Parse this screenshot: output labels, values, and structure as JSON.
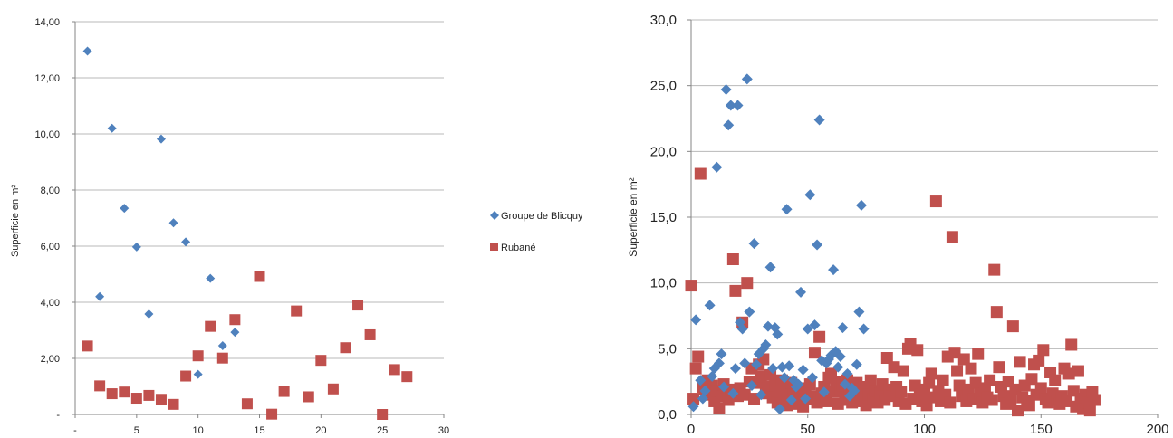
{
  "colors": {
    "blicquy": "#4f81bd",
    "rubane": "#c0504d",
    "grid": "#b8b8b8",
    "axis": "#868686"
  },
  "chart_data": [
    {
      "type": "scatter",
      "ylabel": "Superficie en m²",
      "xlim": [
        0,
        30
      ],
      "ylim": [
        0,
        14
      ],
      "x_ticks": [
        "-",
        "5",
        "10",
        "15",
        "20",
        "25",
        "30"
      ],
      "y_ticks": [
        "-",
        "2,00",
        "4,00",
        "6,00",
        "8,00",
        "10,00",
        "12,00",
        "14,00"
      ],
      "grid": true,
      "legend": "right",
      "series": [
        {
          "name": "Groupe de Blicquy",
          "marker": "diamond",
          "x": [
            1,
            2,
            3,
            4,
            5,
            6,
            7,
            8,
            9,
            10,
            11,
            12,
            13
          ],
          "y": [
            12.95,
            4.2,
            10.2,
            7.35,
            5.97,
            3.58,
            9.82,
            6.83,
            6.15,
            1.43,
            4.85,
            2.45,
            2.93
          ]
        },
        {
          "name": "Rubané",
          "marker": "square",
          "x": [
            1,
            2,
            3,
            4,
            5,
            6,
            7,
            8,
            9,
            10,
            11,
            12,
            13,
            14,
            15,
            16,
            17,
            18,
            19,
            20,
            21,
            22,
            23,
            24,
            25,
            26,
            27
          ],
          "y": [
            2.44,
            1.02,
            0.74,
            0.8,
            0.58,
            0.68,
            0.54,
            0.36,
            1.37,
            2.09,
            3.14,
            2.01,
            3.38,
            0.38,
            4.92,
            0.01,
            0.82,
            3.69,
            0.63,
            1.93,
            0.91,
            2.38,
            3.9,
            2.84,
            0.0,
            1.6,
            1.35
          ]
        }
      ]
    },
    {
      "type": "scatter",
      "ylabel": "Superficie en m²",
      "xlim": [
        0,
        200
      ],
      "ylim": [
        0,
        30
      ],
      "x_ticks": [
        "0",
        "50",
        "100",
        "150",
        "200"
      ],
      "y_ticks": [
        "0,0",
        "5,0",
        "10,0",
        "15,0",
        "20,0",
        "25,0",
        "30,0"
      ],
      "grid": true,
      "legend": "none",
      "series": [
        {
          "name": "Groupe de Blicquy",
          "marker": "diamond",
          "x": [
            1,
            2,
            4,
            5,
            6,
            8,
            9,
            10,
            11,
            12,
            13,
            14,
            15,
            16,
            17,
            18,
            19,
            20,
            21,
            22,
            23,
            24,
            25,
            26,
            27,
            28,
            29,
            30,
            31,
            32,
            33,
            34,
            35,
            36,
            37,
            38,
            39,
            40,
            41,
            42,
            43,
            44,
            45,
            46,
            47,
            48,
            49,
            50,
            51,
            52,
            53,
            54,
            55,
            56,
            57,
            58,
            59,
            60,
            61,
            62,
            63,
            64,
            65,
            66,
            67,
            68,
            69,
            70,
            71,
            72,
            73,
            74
          ],
          "y": [
            0.6,
            7.2,
            2.6,
            1.2,
            1.8,
            8.3,
            2.9,
            3.5,
            18.8,
            3.9,
            4.6,
            2.1,
            24.7,
            22.0,
            23.5,
            1.6,
            3.5,
            23.5,
            7.0,
            6.5,
            3.9,
            25.5,
            7.8,
            2.2,
            13.0,
            3.8,
            4.6,
            1.5,
            5.0,
            5.3,
            6.7,
            11.2,
            3.5,
            6.6,
            6.1,
            0.4,
            3.6,
            2.8,
            15.6,
            3.7,
            1.1,
            2.6,
            2.1,
            2.3,
            9.3,
            3.4,
            1.2,
            6.5,
            16.7,
            2.8,
            6.8,
            12.9,
            22.4,
            4.1,
            1.7,
            3.9,
            4.2,
            4.5,
            11.0,
            4.8,
            3.6,
            4.4,
            6.6,
            2.3,
            3.1,
            1.4,
            2.0,
            1.8,
            3.8,
            7.8,
            15.9,
            6.5
          ]
        },
        {
          "name": "Rubané",
          "marker": "square",
          "x": [
            0,
            1,
            2,
            3,
            4,
            5,
            6,
            7,
            8,
            9,
            10,
            11,
            12,
            13,
            14,
            15,
            16,
            17,
            18,
            19,
            20,
            21,
            22,
            23,
            24,
            25,
            26,
            27,
            28,
            29,
            30,
            31,
            32,
            33,
            34,
            35,
            36,
            37,
            38,
            39,
            40,
            41,
            42,
            43,
            44,
            45,
            46,
            47,
            48,
            49,
            50,
            51,
            52,
            53,
            54,
            55,
            56,
            57,
            58,
            59,
            60,
            61,
            62,
            63,
            64,
            65,
            66,
            67,
            68,
            69,
            70,
            71,
            72,
            73,
            74,
            75,
            76,
            77,
            78,
            79,
            80,
            81,
            82,
            83,
            84,
            85,
            86,
            87,
            88,
            89,
            90,
            91,
            92,
            93,
            94,
            95,
            96,
            97,
            98,
            99,
            100,
            101,
            102,
            103,
            104,
            105,
            106,
            107,
            108,
            109,
            110,
            111,
            112,
            113,
            114,
            115,
            116,
            117,
            118,
            119,
            120,
            121,
            122,
            123,
            124,
            125,
            126,
            127,
            128,
            129,
            130,
            131,
            132,
            133,
            134,
            135,
            136,
            137,
            138,
            139,
            140,
            141,
            142,
            143,
            144,
            145,
            146,
            147,
            148,
            149,
            150,
            151,
            152,
            153,
            154,
            155,
            156,
            157,
            158,
            159,
            160,
            161,
            162,
            163,
            164,
            165,
            166,
            167,
            168,
            169,
            170,
            171,
            172,
            173
          ],
          "y": [
            9.8,
            1.2,
            3.5,
            4.4,
            18.3,
            2.1,
            1.9,
            2.6,
            1.5,
            2.2,
            1.0,
            1.8,
            0.5,
            1.4,
            2.3,
            1.6,
            1.1,
            1.9,
            11.8,
            9.4,
            1.4,
            2.0,
            7.0,
            1.5,
            10.0,
            2.5,
            3.5,
            1.2,
            2.4,
            3.8,
            2.9,
            4.2,
            1.6,
            2.1,
            3.0,
            1.3,
            2.2,
            0.9,
            1.7,
            2.6,
            1.1,
            0.7,
            1.9,
            2.4,
            1.5,
            0.8,
            1.3,
            2.0,
            0.6,
            1.8,
            1.2,
            2.3,
            1.4,
            4.7,
            0.9,
            5.9,
            1.6,
            2.1,
            1.0,
            2.8,
            3.1,
            1.7,
            2.5,
            0.8,
            1.9,
            2.2,
            1.1,
            2.6,
            1.4,
            0.9,
            1.8,
            2.4,
            1.3,
            1.0,
            2.1,
            0.7,
            1.5,
            2.6,
            1.2,
            1.8,
            0.9,
            1.6,
            2.3,
            1.1,
            4.3,
            1.9,
            1.4,
            3.6,
            2.1,
            1.0,
            1.7,
            3.3,
            0.8,
            5.0,
            5.4,
            1.2,
            2.2,
            4.9,
            1.5,
            1.0,
            1.9,
            0.7,
            2.4,
            3.1,
            1.3,
            16.2,
            1.8,
            1.0,
            2.6,
            1.5,
            4.4,
            0.9,
            13.5,
            4.7,
            3.3,
            2.2,
            1.4,
            4.2,
            1.0,
            1.9,
            3.5,
            1.2,
            2.4,
            4.6,
            1.6,
            0.9,
            2.0,
            1.3,
            2.6,
            1.1,
            11.0,
            7.8,
            3.6,
            2.1,
            1.4,
            0.8,
            2.5,
            1.0,
            6.7,
            1.9,
            0.3,
            4.0,
            1.3,
            2.2,
            1.0,
            0.7,
            2.7,
            3.8,
            1.5,
            4.1,
            2.0,
            4.9,
            1.2,
            0.9,
            3.2,
            1.6,
            2.6,
            1.1,
            0.8,
            1.4,
            3.5,
            1.0,
            3.1,
            5.3,
            1.8,
            0.6,
            3.3,
            1.2,
            0.4,
            1.5,
            0.9,
            0.3,
            1.7,
            1.1
          ]
        }
      ]
    }
  ]
}
